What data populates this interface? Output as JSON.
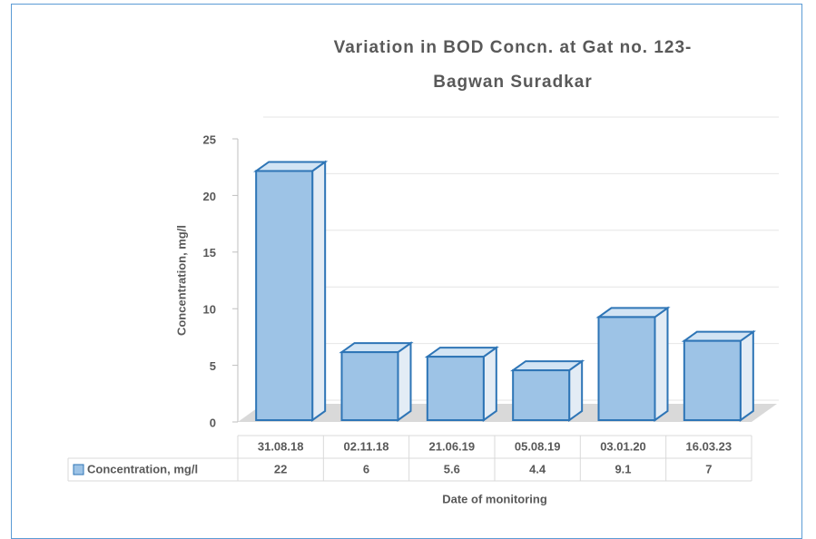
{
  "chart_data": {
    "type": "bar",
    "title": "Variation in BOD Concn. at Gat no. 123-Bagwan Suradkar",
    "categories": [
      "31.08.18",
      "02.11.18",
      "21.06.19",
      "05.08.19",
      "03.01.20",
      "16.03.23"
    ],
    "series": [
      {
        "name": "Concentration, mg/l",
        "color": "#9dc3e6",
        "values": [
          22,
          6,
          5.6,
          4.4,
          9.1,
          7
        ]
      }
    ],
    "xlabel": "Date of monitoring",
    "ylabel": "Concentration, mg/l",
    "ylim": [
      0,
      25
    ],
    "yticks": [
      0,
      5,
      10,
      15,
      20,
      25
    ],
    "grid": true
  }
}
